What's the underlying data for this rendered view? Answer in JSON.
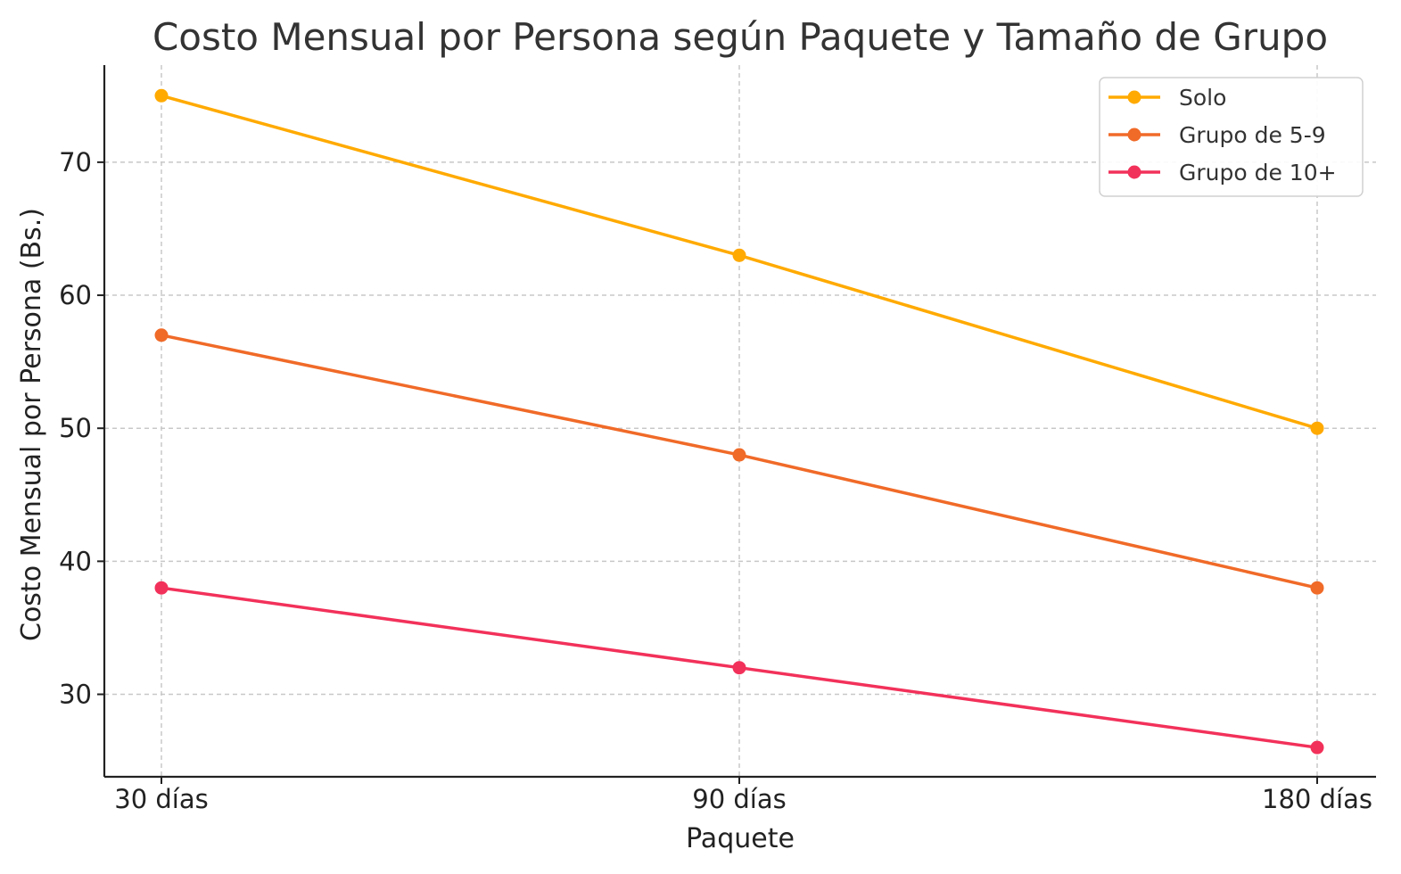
{
  "chart_data": {
    "type": "line",
    "title": "Costo Mensual por Persona según Paquete y Tamaño de Grupo",
    "xlabel": "Paquete",
    "ylabel": "Costo Mensual por Persona (Bs.)",
    "categories": [
      "30 días",
      "90 días",
      "180 días"
    ],
    "ylim": [
      23.8,
      77.3
    ],
    "yticks": [
      30,
      40,
      50,
      60,
      70
    ],
    "grid": true,
    "legend_position": "top-right",
    "series": [
      {
        "name": "Solo",
        "color": "#FFAA00",
        "values": [
          75,
          63,
          50
        ]
      },
      {
        "name": "Grupo de 5-9",
        "color": "#F06A28",
        "values": [
          57,
          48,
          38
        ]
      },
      {
        "name": "Grupo de 10+",
        "color": "#F2315A",
        "values": [
          38,
          32,
          26
        ]
      }
    ]
  }
}
